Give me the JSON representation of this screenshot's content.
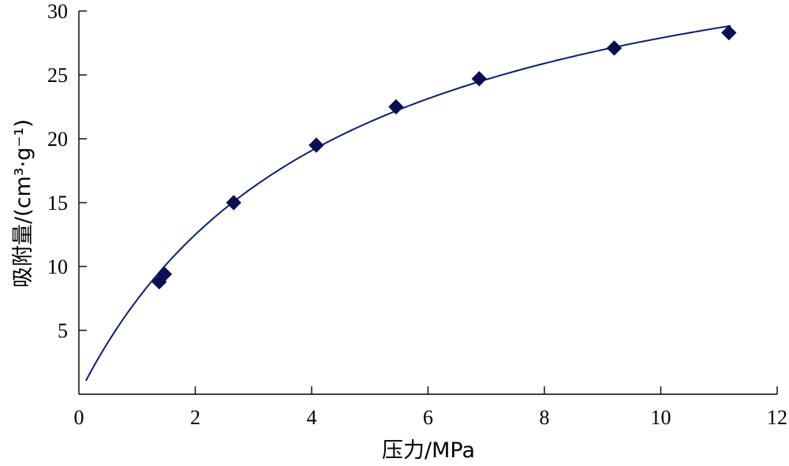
{
  "chart_data": {
    "type": "scatter",
    "title": "",
    "xlabel": "压力/MPa",
    "ylabel": "吸附量/(cm³·g⁻¹)",
    "xlim": [
      0,
      12
    ],
    "ylim": [
      0,
      30
    ],
    "x_ticks": [
      0,
      2,
      4,
      6,
      8,
      10,
      12
    ],
    "y_ticks": [
      5,
      10,
      15,
      20,
      25,
      30
    ],
    "x_tick_labels": [
      "0",
      "2",
      "4",
      "6",
      "8",
      "10",
      "12"
    ],
    "y_tick_labels": [
      "5",
      "10",
      "15",
      "20",
      "25",
      "30"
    ],
    "grid": false,
    "legend": "none",
    "series": [
      {
        "marker": "diamond",
        "color": "#0c0f4f",
        "x": [
          1.38,
          1.47,
          2.66,
          4.08,
          5.45,
          6.88,
          9.2,
          11.17
        ],
        "y": [
          8.8,
          9.4,
          15.0,
          19.5,
          22.5,
          24.7,
          27.1,
          28.3
        ]
      }
    ],
    "fit_curve": {
      "type": "langmuir",
      "color": "#0a1e6e",
      "vl": 40.3,
      "pl": 4.45,
      "x_range": [
        0.12,
        11.2
      ]
    }
  }
}
